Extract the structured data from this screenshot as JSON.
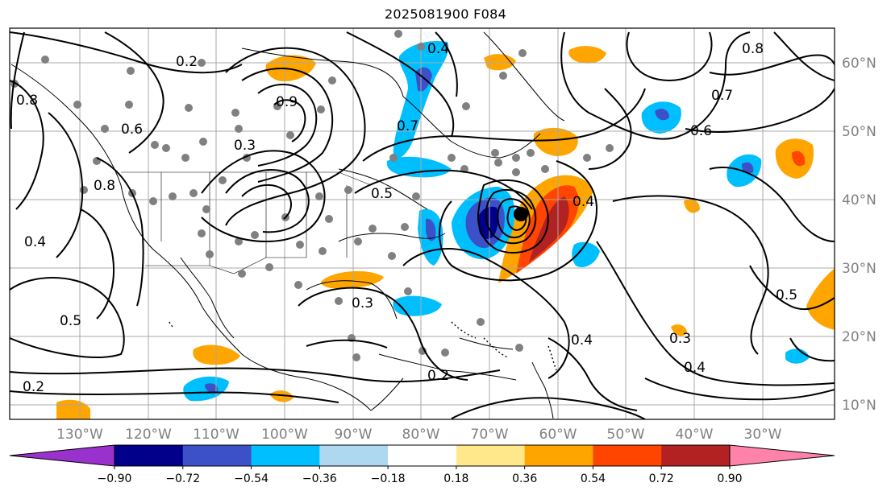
{
  "title": "2025081900 F084",
  "map": {
    "lon_labels": [
      "130°W",
      "120°W",
      "110°W",
      "100°W",
      "90°W",
      "80°W",
      "70°W",
      "60°W",
      "50°W",
      "40°W",
      "30°W"
    ],
    "lat_labels": [
      "60°N",
      "50°N",
      "40°N",
      "30°N",
      "20°N",
      "10°N"
    ],
    "contour_labels": [
      "0.2",
      "0.2",
      "0.3",
      "0.2",
      "0.4",
      "0.5",
      "0.6",
      "0.7",
      "0.8",
      "0.9",
      "0.4",
      "0.3",
      "0.4",
      "0.5",
      "0.8",
      "0.7",
      "0.6",
      "0.8",
      "0.4",
      "0.4",
      "0.3",
      "0.5"
    ]
  },
  "colorbar": {
    "tick_labels": [
      "−0.90",
      "−0.72",
      "−0.54",
      "−0.36",
      "−0.18",
      "0.18",
      "0.36",
      "0.54",
      "0.72",
      "0.90"
    ],
    "colors": [
      "#9932cc",
      "#00008b",
      "#3c50c8",
      "#00bfff",
      "#add8f0",
      "#ffffff",
      "#ffe88c",
      "#ffa500",
      "#ff4500",
      "#b22222",
      "#ff82ab"
    ]
  }
}
